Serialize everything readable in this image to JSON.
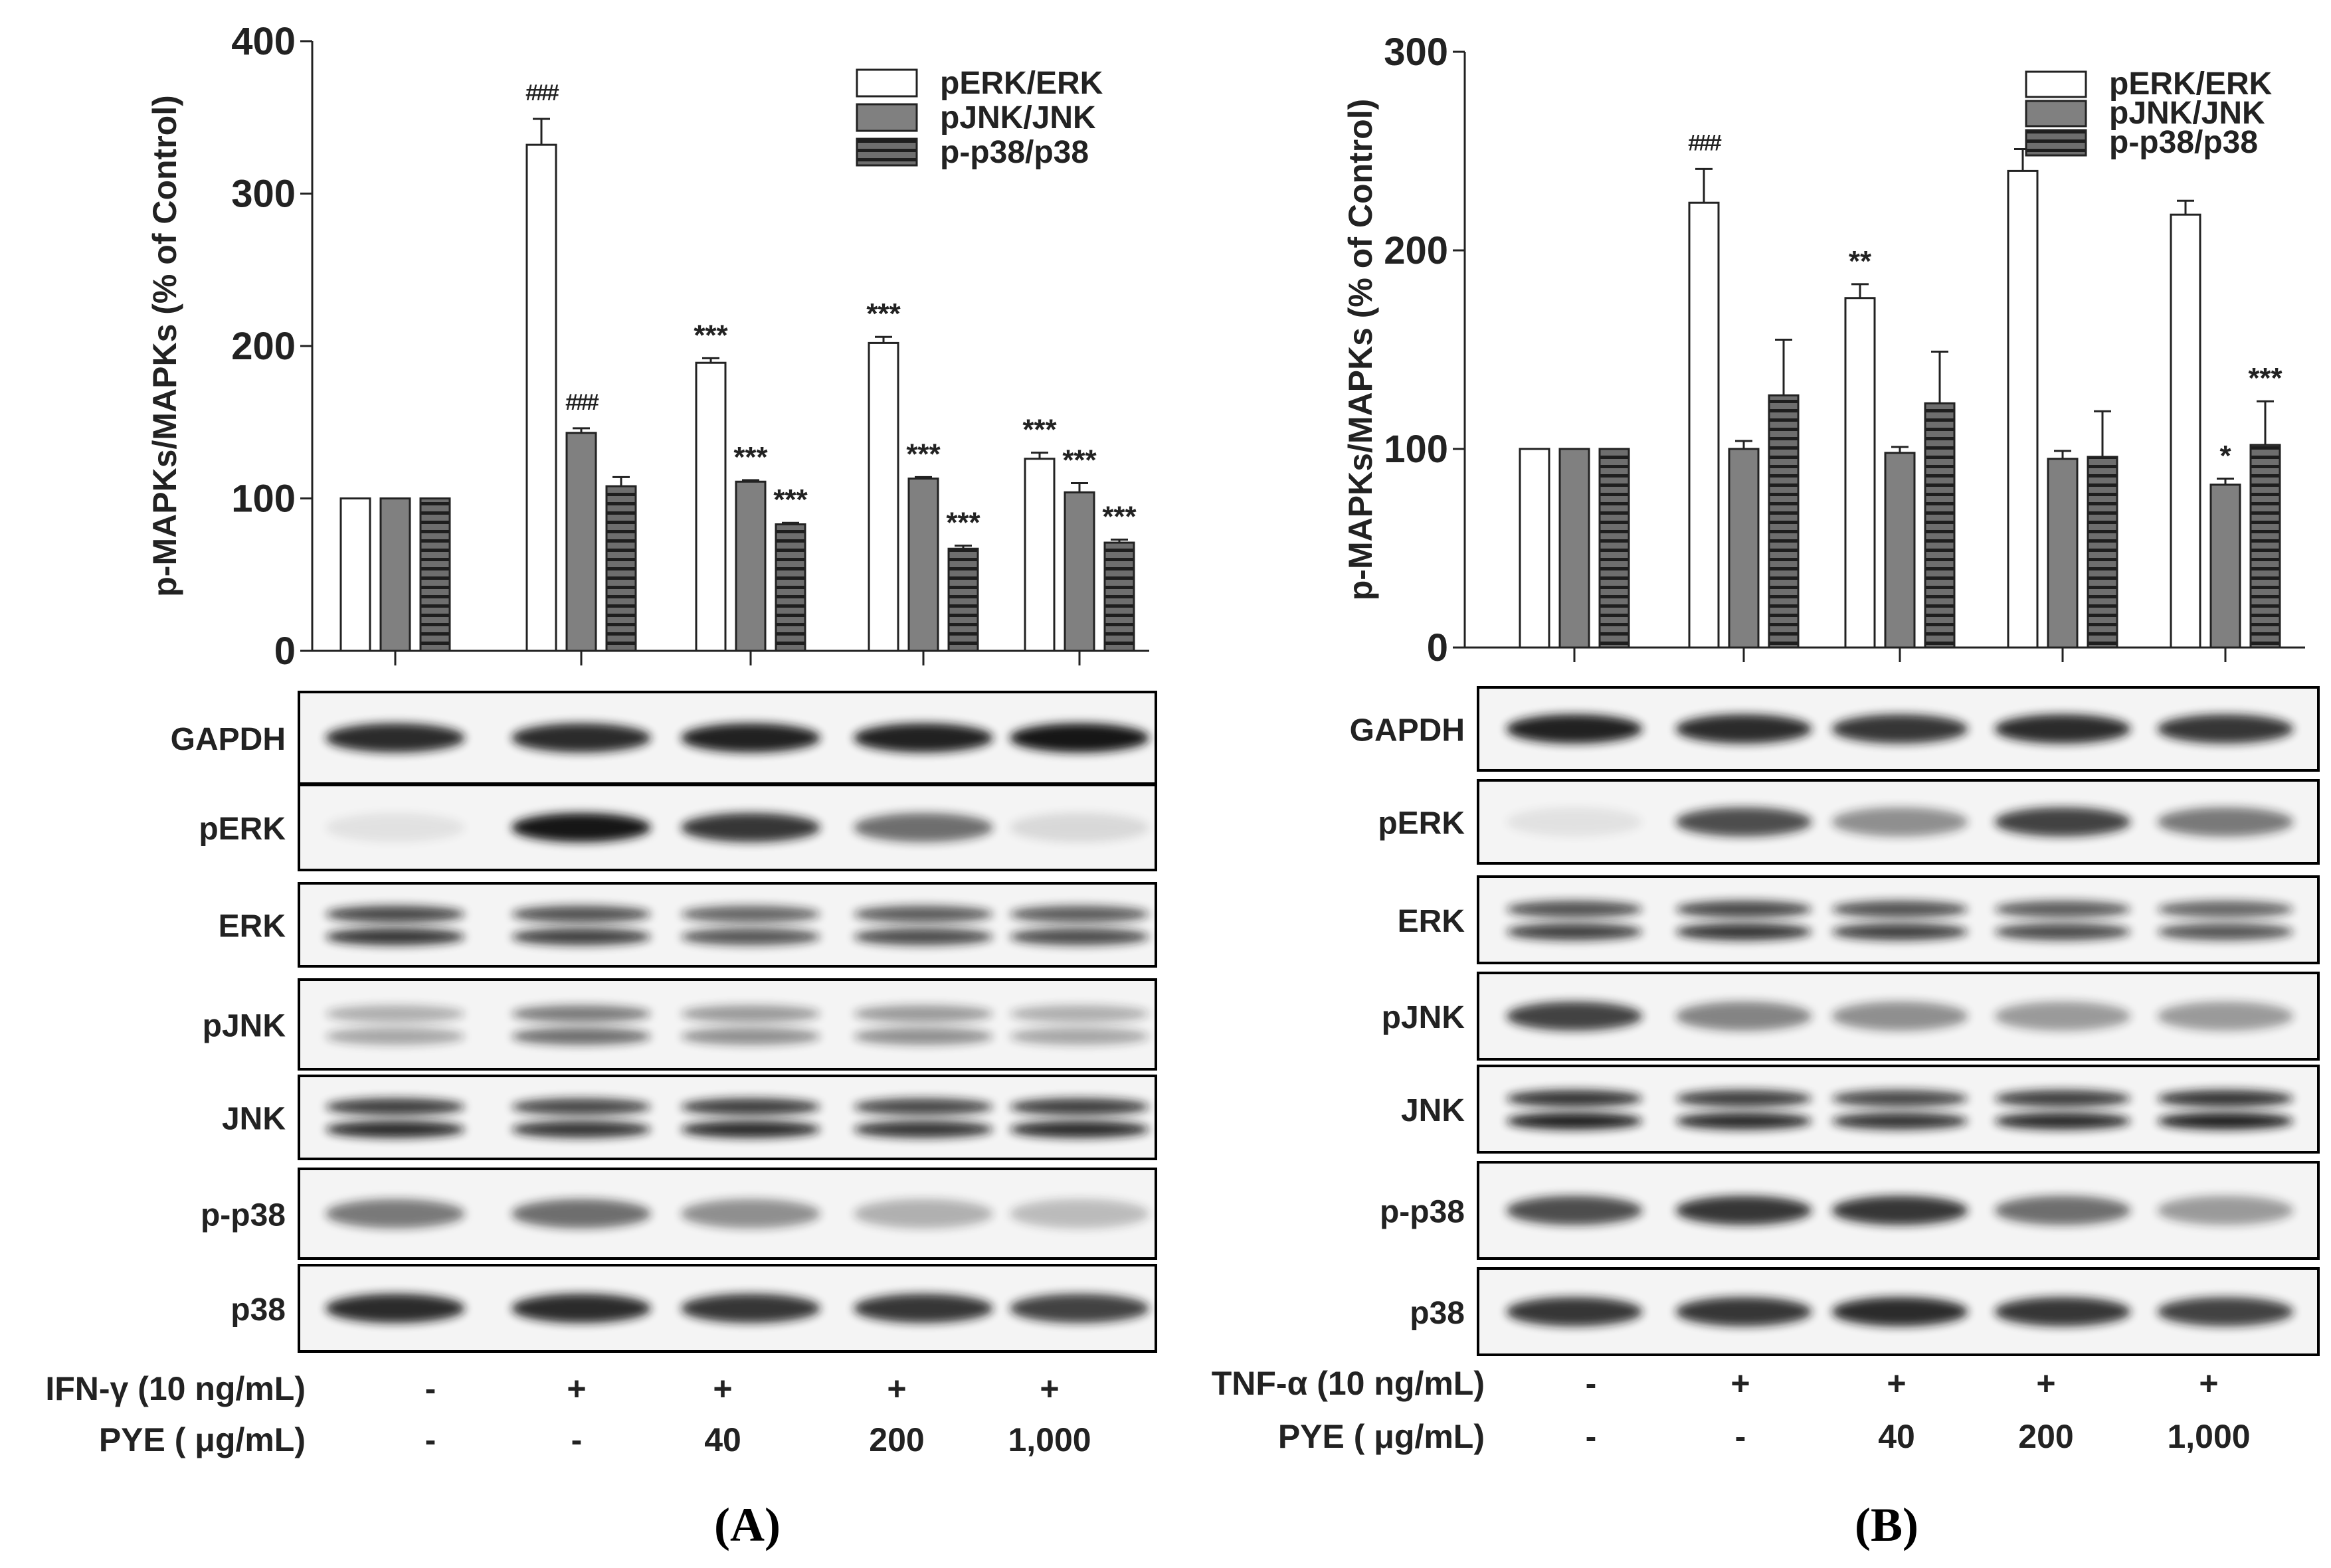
{
  "band_colors": {
    "fill": "#141414",
    "membrane": "#f4f4f4",
    "frame": "#000000"
  },
  "chart_data": [
    {
      "panel": "(A)",
      "type": "bar",
      "ylabel": "p-MAPKs/MAPKs (% of Control)",
      "ylim": [
        0,
        400
      ],
      "yticks": [
        0,
        100,
        200,
        300,
        400
      ],
      "legend_position": "top-right",
      "categories": [
        "control",
        "IFN-γ",
        "IFN-γ + PYE 40",
        "IFN-γ + PYE 200",
        "IFN-γ + PYE 1,000"
      ],
      "series": [
        {
          "name": "pERK/ERK",
          "style": "white",
          "values": [
            100,
            332,
            189,
            202,
            126
          ],
          "errors": [
            0,
            17,
            3,
            4,
            4
          ],
          "annotations": [
            "",
            "###",
            "***",
            "***",
            "***"
          ]
        },
        {
          "name": "pJNK/JNK",
          "style": "gray",
          "values": [
            100,
            143,
            111,
            113,
            104
          ],
          "errors": [
            0,
            3,
            1,
            1,
            6
          ],
          "annotations": [
            "",
            "###",
            "***",
            "***",
            "***"
          ]
        },
        {
          "name": "p-p38/p38",
          "style": "hatched",
          "values": [
            100,
            108,
            83,
            67,
            71
          ],
          "errors": [
            0,
            6,
            1,
            2,
            2
          ],
          "annotations": [
            "",
            "",
            "***",
            "***",
            "***"
          ]
        }
      ],
      "blot_labels": [
        "GAPDH",
        "pERK",
        "ERK",
        "pJNK",
        "JNK",
        "p-p38",
        "p38"
      ],
      "treatment_rows": [
        {
          "label": "IFN-γ (10 ng/mL)",
          "values": [
            "-",
            "+",
            "+",
            "+",
            "+"
          ]
        },
        {
          "label": "PYE ( μg/mL)",
          "values": [
            "-",
            "-",
            "40",
            "200",
            "1,000"
          ]
        }
      ]
    },
    {
      "panel": "(B)",
      "type": "bar",
      "ylabel": "p-MAPKs/MAPKs (% of Control)",
      "ylim": [
        0,
        300
      ],
      "yticks": [
        0,
        100,
        200,
        300
      ],
      "legend_position": "top-right",
      "categories": [
        "control",
        "TNF-α",
        "TNF-α + PYE 40",
        "TNF-α + PYE 200",
        "TNF-α + PYE 1,000"
      ],
      "series": [
        {
          "name": "pERK/ERK",
          "style": "white",
          "values": [
            100,
            224,
            176,
            240,
            218
          ],
          "errors": [
            0,
            17,
            7,
            11,
            7
          ],
          "annotations": [
            "",
            "###",
            "**",
            "",
            ""
          ]
        },
        {
          "name": "pJNK/JNK",
          "style": "gray",
          "values": [
            100,
            100,
            98,
            95,
            82
          ],
          "errors": [
            0,
            4,
            3,
            4,
            3
          ],
          "annotations": [
            "",
            "",
            "",
            "",
            "*"
          ]
        },
        {
          "name": "p-p38/p38",
          "style": "hatched",
          "values": [
            100,
            127,
            123,
            96,
            102
          ],
          "errors": [
            0,
            28,
            26,
            23,
            22
          ],
          "annotations": [
            "",
            "",
            "",
            "",
            "***"
          ]
        }
      ],
      "blot_labels": [
        "GAPDH",
        "pERK",
        "ERK",
        "pJNK",
        "JNK",
        "p-p38",
        "p38"
      ],
      "treatment_rows": [
        {
          "label": "TNF-α (10 ng/mL)",
          "values": [
            "-",
            "+",
            "+",
            "+",
            "+"
          ]
        },
        {
          "label": "PYE ( μg/mL)",
          "values": [
            "-",
            "-",
            "40",
            "200",
            "1,000"
          ]
        }
      ]
    }
  ]
}
